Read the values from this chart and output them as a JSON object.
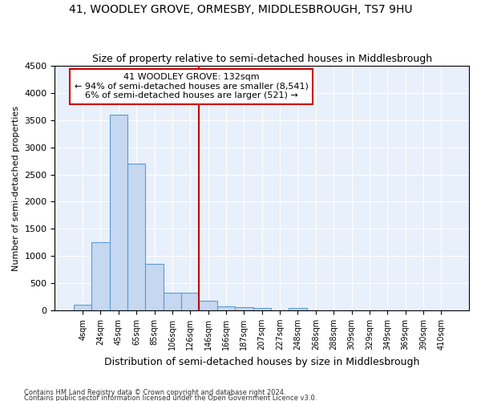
{
  "title": "41, WOODLEY GROVE, ORMESBY, MIDDLESBROUGH, TS7 9HU",
  "subtitle": "Size of property relative to semi-detached houses in Middlesbrough",
  "xlabel": "Distribution of semi-detached houses by size in Middlesbrough",
  "ylabel": "Number of semi-detached properties",
  "categories": [
    "4sqm",
    "24sqm",
    "45sqm",
    "65sqm",
    "85sqm",
    "106sqm",
    "126sqm",
    "146sqm",
    "166sqm",
    "187sqm",
    "207sqm",
    "227sqm",
    "248sqm",
    "268sqm",
    "288sqm",
    "309sqm",
    "329sqm",
    "349sqm",
    "369sqm",
    "390sqm",
    "410sqm"
  ],
  "values": [
    100,
    1250,
    3600,
    2700,
    850,
    330,
    330,
    170,
    70,
    60,
    40,
    0,
    40,
    0,
    0,
    0,
    0,
    0,
    0,
    0,
    0
  ],
  "bar_color": "#c5d8f0",
  "bar_edge_color": "#5b9bd5",
  "annotation_text_line1": "41 WOODLEY GROVE: 132sqm",
  "annotation_text_line2": "← 94% of semi-detached houses are smaller (8,541)",
  "annotation_text_line3": "6% of semi-detached houses are larger (521) →",
  "vline_color": "#c00000",
  "vline_x_index": 6.5,
  "ylim": [
    0,
    4500
  ],
  "yticks": [
    0,
    500,
    1000,
    1500,
    2000,
    2500,
    3000,
    3500,
    4000,
    4500
  ],
  "background_color": "#e8f0fb",
  "grid_color": "#ffffff",
  "footnote1": "Contains HM Land Registry data © Crown copyright and database right 2024.",
  "footnote2": "Contains public sector information licensed under the Open Government Licence v3.0."
}
